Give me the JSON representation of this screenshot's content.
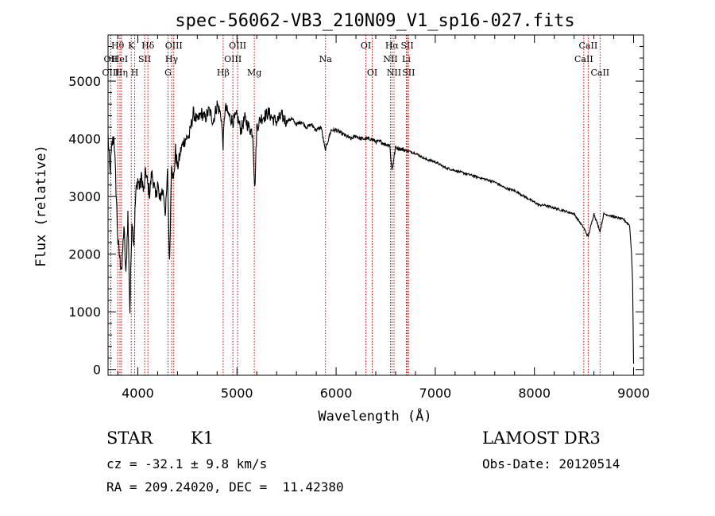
{
  "chart_data": {
    "type": "line",
    "title": "spec-56062-VB3_210N09_V1_sp16-027.fits",
    "xlabel": "Wavelength (Å)",
    "ylabel": "Flux (relative)",
    "xlim": [
      3700,
      9100
    ],
    "ylim": [
      -100,
      5800
    ],
    "xticks": [
      4000,
      5000,
      6000,
      7000,
      8000,
      9000
    ],
    "yticks": [
      0,
      1000,
      2000,
      3000,
      4000,
      5000
    ],
    "series": [
      {
        "name": "spectrum",
        "x": [
          3700,
          3720,
          3740,
          3760,
          3780,
          3800,
          3820,
          3840,
          3860,
          3880,
          3900,
          3920,
          3940,
          3960,
          3980,
          4000,
          4020,
          4040,
          4060,
          4080,
          4100,
          4120,
          4140,
          4160,
          4180,
          4200,
          4220,
          4240,
          4260,
          4280,
          4300,
          4320,
          4340,
          4360,
          4380,
          4400,
          4440,
          4480,
          4520,
          4560,
          4600,
          4640,
          4680,
          4720,
          4760,
          4800,
          4840,
          4860,
          4880,
          4920,
          4960,
          5000,
          5040,
          5080,
          5120,
          5160,
          5180,
          5200,
          5240,
          5280,
          5320,
          5360,
          5400,
          5450,
          5500,
          5550,
          5600,
          5650,
          5700,
          5750,
          5800,
          5850,
          5890,
          5950,
          6000,
          6050,
          6100,
          6150,
          6200,
          6250,
          6300,
          6350,
          6400,
          6450,
          6500,
          6540,
          6563,
          6600,
          6700,
          6800,
          6900,
          7000,
          7100,
          7200,
          7300,
          7400,
          7500,
          7600,
          7700,
          7800,
          7900,
          8000,
          8050,
          8100,
          8200,
          8300,
          8400,
          8498,
          8542,
          8600,
          8662,
          8700,
          8800,
          8900,
          8960,
          8980,
          8990,
          9000
        ],
        "values": [
          4050,
          3400,
          3900,
          4050,
          3150,
          2200,
          1900,
          1750,
          2500,
          1600,
          2700,
          1000,
          2600,
          2200,
          3050,
          3300,
          3150,
          3350,
          3050,
          3450,
          3200,
          3050,
          3400,
          3250,
          2950,
          3250,
          2900,
          3100,
          3050,
          2700,
          3400,
          1800,
          3650,
          3250,
          3800,
          3500,
          3850,
          4000,
          4050,
          4450,
          4300,
          4450,
          4350,
          4500,
          4300,
          4600,
          4400,
          3900,
          4550,
          4400,
          4300,
          4400,
          4150,
          4350,
          4200,
          4100,
          3100,
          4200,
          4350,
          4400,
          4450,
          4350,
          4300,
          4400,
          4300,
          4350,
          4250,
          4300,
          4200,
          4250,
          4150,
          4200,
          3800,
          4150,
          4150,
          4100,
          4050,
          4000,
          4050,
          4000,
          4000,
          4000,
          3950,
          3950,
          3900,
          3900,
          3450,
          3850,
          3800,
          3750,
          3650,
          3600,
          3500,
          3450,
          3400,
          3350,
          3300,
          3250,
          3150,
          3100,
          3000,
          2900,
          2850,
          2850,
          2800,
          2750,
          2700,
          2450,
          2300,
          2700,
          2400,
          2700,
          2650,
          2600,
          2500,
          2000,
          1500,
          100
        ]
      }
    ],
    "lines": [
      {
        "label": "Hθ",
        "x": 3797,
        "row": 1
      },
      {
        "label": "OII",
        "x": 3727,
        "row": 2
      },
      {
        "label": "OIII",
        "x": 3728,
        "row": 3
      },
      {
        "label": "HeI",
        "x": 3820,
        "row": 2
      },
      {
        "label": "Hη",
        "x": 3835,
        "row": 3
      },
      {
        "label": "K",
        "x": 3934,
        "row": 1
      },
      {
        "label": "SII",
        "x": 4069,
        "row": 2
      },
      {
        "label": "H",
        "x": 3969,
        "row": 3
      },
      {
        "label": "Hδ",
        "x": 4102,
        "row": 1
      },
      {
        "label": "OIII",
        "x": 4363,
        "row": 1
      },
      {
        "label": "Hγ",
        "x": 4341,
        "row": 2
      },
      {
        "label": "G",
        "x": 4305,
        "row": 3
      },
      {
        "label": "OIII",
        "x": 5007,
        "row": 1
      },
      {
        "label": "OIII",
        "x": 4959,
        "row": 2
      },
      {
        "label": "Hβ",
        "x": 4861,
        "row": 3
      },
      {
        "label": "Mg",
        "x": 5175,
        "row": 3
      },
      {
        "label": "Na",
        "x": 5893,
        "row": 2
      },
      {
        "label": "OI",
        "x": 6300,
        "row": 1
      },
      {
        "label": "OI",
        "x": 6364,
        "row": 3
      },
      {
        "label": "Hα",
        "x": 6563,
        "row": 1
      },
      {
        "label": "SII",
        "x": 6717,
        "row": 1
      },
      {
        "label": "NII",
        "x": 6548,
        "row": 2
      },
      {
        "label": "Li",
        "x": 6708,
        "row": 2
      },
      {
        "label": "NII",
        "x": 6584,
        "row": 3
      },
      {
        "label": "SII",
        "x": 6731,
        "row": 3
      },
      {
        "label": "CaII",
        "x": 8542,
        "row": 1
      },
      {
        "label": "CaII",
        "x": 8498,
        "row": 2
      },
      {
        "label": "CaII",
        "x": 8662,
        "row": 3
      }
    ]
  },
  "info": {
    "class_label": "STAR",
    "subclass": "K1",
    "survey": "LAMOST DR3",
    "redshift": "cz = -32.1 ± 9.8 km/s",
    "obs_date": "Obs-Date: 20120514",
    "coords": "RA = 209.24020, DEC =  11.42380"
  },
  "colors": {
    "line_marker": "#cc0000",
    "spectrum": "#000000",
    "axes": "#000000"
  }
}
